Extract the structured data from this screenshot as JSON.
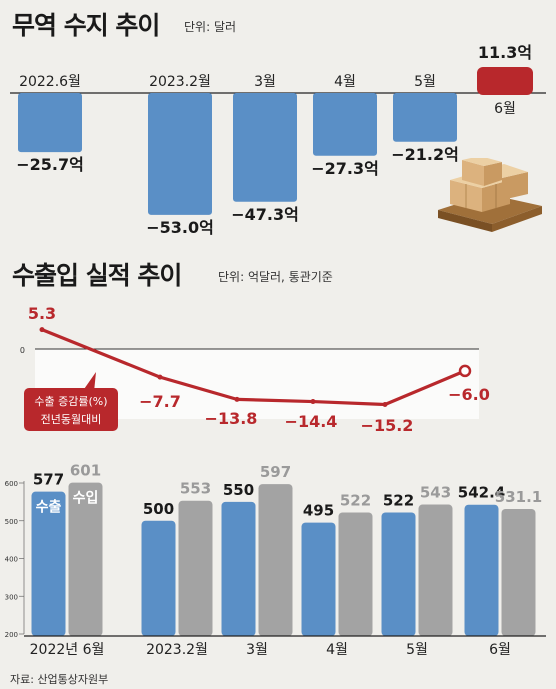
{
  "chart_data": [
    {
      "type": "bar",
      "title": "무역 수지 추이",
      "unit": "단위: 달러",
      "categories": [
        "2022.6월",
        "2023.2월",
        "3월",
        "4월",
        "5월",
        "6월"
      ],
      "values": [
        -25.7,
        -53.0,
        -47.3,
        -27.3,
        -21.2,
        11.3
      ],
      "value_labels": [
        "−25.7억",
        "−53.0억",
        "−47.3억",
        "−27.3억",
        "−21.2억",
        "11.3억"
      ],
      "colors": {
        "negative": "#5a8fc6",
        "positive": "#b8282c"
      }
    },
    {
      "type": "line",
      "title": "수출입 실적 추이",
      "unit": "단위: 억달러, 통관기준",
      "series_label": [
        "수출 증감률(%)",
        "전년동월대비"
      ],
      "values": [
        5.3,
        -7.7,
        -13.8,
        -14.4,
        -15.2,
        -6.0
      ],
      "value_labels": [
        "5.3",
        "−7.7",
        "−13.8",
        "−14.4",
        "−15.2",
        "−6.0"
      ],
      "zero_label": "0",
      "color": "#b8282c"
    },
    {
      "type": "bar",
      "categories": [
        "2022년 6월",
        "2023.2월",
        "3월",
        "4월",
        "5월",
        "6월"
      ],
      "series": [
        {
          "name": "수출",
          "values": [
            577,
            500,
            550,
            495,
            522,
            542.4
          ],
          "labels": [
            "577",
            "500",
            "550",
            "495",
            "522",
            "542.4"
          ],
          "color": "#5a8fc6"
        },
        {
          "name": "수입",
          "values": [
            601,
            553,
            597,
            522,
            543,
            531.1
          ],
          "labels": [
            "601",
            "553",
            "597",
            "522",
            "543",
            "531.1"
          ],
          "color": "#a3a3a3"
        }
      ],
      "ylim": [
        200,
        600
      ],
      "yticks": [
        200,
        300,
        400,
        500,
        600
      ],
      "ytick_labels": [
        "200",
        "300",
        "400",
        "500",
        "600"
      ]
    }
  ],
  "source": "자료: 산업통상자원부"
}
